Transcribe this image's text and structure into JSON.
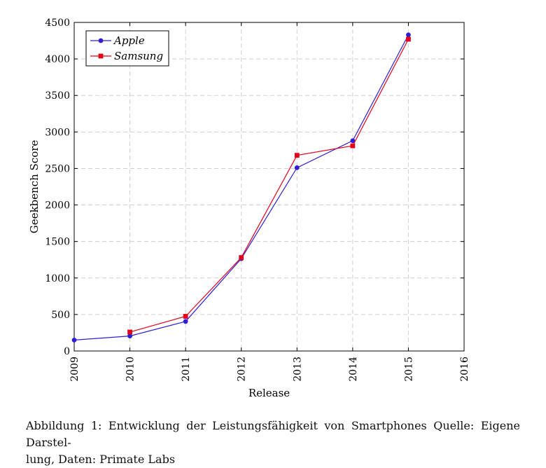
{
  "chart_data": {
    "type": "line",
    "xlabel": "Release",
    "ylabel": "Geekbench Score",
    "xlim": [
      2009,
      2016
    ],
    "ylim": [
      0,
      4500
    ],
    "xticks": [
      "2009",
      "2010",
      "2011",
      "2012",
      "2013",
      "2014",
      "2015",
      "2016"
    ],
    "yticks": [
      "0",
      "500",
      "1000",
      "1500",
      "2000",
      "2500",
      "3000",
      "3500",
      "4000",
      "4500"
    ],
    "grid": true,
    "legend_position": "top-left",
    "series": [
      {
        "name": "Apple",
        "color": "#2d1fd6",
        "marker": "circle",
        "x": [
          2009,
          2010,
          2011,
          2012,
          2013,
          2014,
          2015
        ],
        "values": [
          150,
          205,
          405,
          1265,
          2510,
          2880,
          4330
        ]
      },
      {
        "name": "Samsung",
        "color": "#e3001b",
        "marker": "square",
        "x": [
          2010,
          2011,
          2012,
          2013,
          2014,
          2015
        ],
        "values": [
          260,
          475,
          1280,
          2680,
          2810,
          4270
        ]
      }
    ]
  },
  "caption": {
    "line1": "Abbildung 1: Entwicklung der Leistungsfähigkeit von Smartphones Quelle: Eigene Darstel-",
    "line2": "lung, Daten: Primate Labs"
  }
}
